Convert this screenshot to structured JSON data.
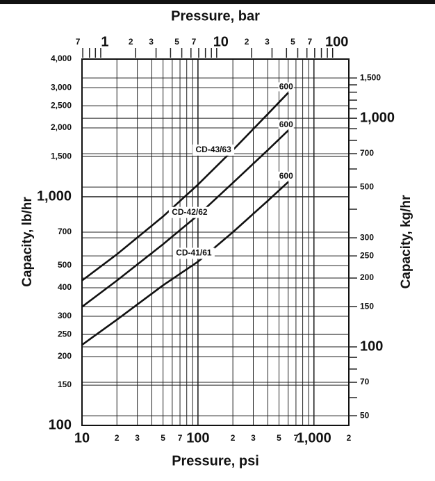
{
  "chart_data": {
    "type": "line",
    "title": "Pressure, bar",
    "xlabel": "Pressure, psi",
    "ylabel": "Capacity, lb/hr",
    "y2label": "Capacity, kg/hr",
    "log_x": true,
    "log_y": true,
    "grid": true,
    "xlim": [
      10,
      2000
    ],
    "ylim": [
      100,
      4000
    ],
    "xticks": [
      10,
      {
        "value": 20,
        "label": "2"
      },
      {
        "value": 30,
        "label": "3"
      },
      {
        "value": 50,
        "label": "5"
      },
      {
        "value": 70,
        "label": "7"
      },
      100,
      {
        "value": 200,
        "label": "2"
      },
      {
        "value": 300,
        "label": "3"
      },
      {
        "value": 500,
        "label": "5"
      },
      {
        "value": 700,
        "label": "7"
      },
      {
        "value": 1000,
        "label": "1,000"
      },
      {
        "value": 2000,
        "label": "2"
      }
    ],
    "xminor": [
      40,
      60,
      80,
      90,
      400,
      600,
      800,
      900
    ],
    "yticks": [
      {
        "value": 4000,
        "label": "4,000"
      },
      {
        "value": 3000,
        "label": "3,000"
      },
      {
        "value": 2500,
        "label": "2,500"
      },
      {
        "value": 2000,
        "label": "2,000"
      },
      {
        "value": 1500,
        "label": "1,500"
      },
      {
        "value": 1000,
        "label": "1,000"
      },
      700,
      500,
      400,
      300,
      250,
      200,
      150,
      100
    ],
    "x2lim": [
      0.6895,
      137.9
    ],
    "x2ticks": [
      {
        "value": 0.7,
        "label": "7"
      },
      1,
      2,
      3,
      5,
      7,
      10,
      {
        "value": 20,
        "label": "2"
      },
      {
        "value": 30,
        "label": "3"
      },
      {
        "value": 50,
        "label": "5"
      },
      {
        "value": 70,
        "label": "7"
      },
      100
    ],
    "x2minor": [
      0.8,
      0.9,
      4,
      6,
      8,
      9,
      40,
      60,
      80,
      90
    ],
    "y2lim": [
      45.36,
      1814.4
    ],
    "y2ticks": [
      {
        "value": 1500,
        "label": "1,500"
      },
      {
        "value": 1000,
        "label": "1,000"
      },
      700,
      500,
      300,
      250,
      200,
      150,
      100,
      70,
      50
    ],
    "y2minor": [
      1400,
      1300,
      1200,
      1100,
      900,
      800,
      600,
      400,
      90,
      80,
      60
    ],
    "x": [
      10,
      20,
      50,
      100,
      200,
      400,
      600
    ],
    "series": [
      {
        "name": "CD-43/63",
        "end_label": "600",
        "color": "#111111",
        "values": [
          430,
          560,
          820,
          1130,
          1600,
          2300,
          2850
        ]
      },
      {
        "name": "CD-42/62",
        "end_label": "600",
        "color": "#111111",
        "values": [
          330,
          430,
          620,
          830,
          1150,
          1600,
          1950
        ]
      },
      {
        "name": "CD-41/61",
        "end_label": "600",
        "color": "#111111",
        "values": [
          225,
          290,
          410,
          520,
          700,
          960,
          1160
        ]
      }
    ]
  }
}
